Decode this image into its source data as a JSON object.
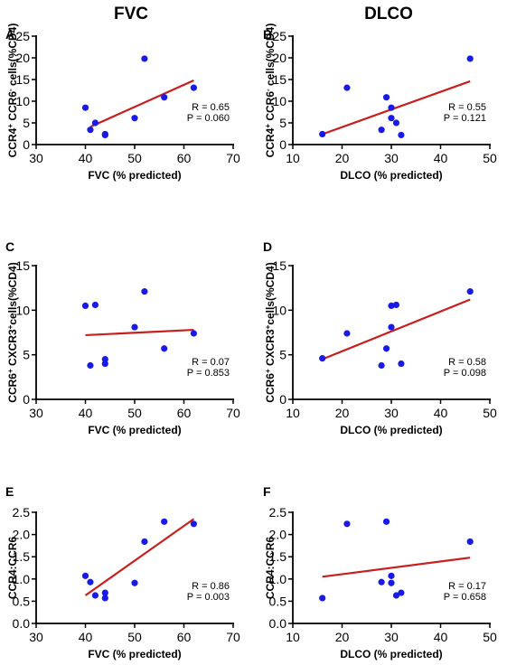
{
  "column_titles": [
    "FVC",
    "DLCO"
  ],
  "colors": {
    "point": "#1a1ae6",
    "fit_line": "#c81e1e",
    "axis": "#000000"
  },
  "chart_data": [
    {
      "panel": "A",
      "type": "scatter",
      "column": "FVC",
      "xlabel": "FVC (% predicted)",
      "ylabel": [
        "CCR4",
        "+",
        " CCR6",
        "-",
        " cells(%CD4)"
      ],
      "xlim": [
        30,
        70
      ],
      "ylim": [
        0,
        25
      ],
      "xticks": [
        30,
        40,
        50,
        60,
        70
      ],
      "yticks": [
        0,
        5,
        10,
        15,
        20,
        25
      ],
      "points": [
        [
          40,
          8.5
        ],
        [
          41,
          3.4
        ],
        [
          42,
          5.0
        ],
        [
          44,
          2.4
        ],
        [
          44,
          2.2
        ],
        [
          50,
          6.1
        ],
        [
          52,
          19.8
        ],
        [
          56,
          10.9
        ],
        [
          62,
          13.1
        ]
      ],
      "fit": [
        [
          41,
          4.1
        ],
        [
          62,
          14.8
        ]
      ],
      "stats": [
        "R = 0.65",
        "P = 0.060"
      ]
    },
    {
      "panel": "B",
      "type": "scatter",
      "column": "DLCO",
      "xlabel": "DLCO (% predicted)",
      "ylabel": [
        "CCR4",
        "+",
        " CCR6",
        "-",
        " cells(%CD4)"
      ],
      "xlim": [
        10,
        50
      ],
      "ylim": [
        0,
        25
      ],
      "xticks": [
        10,
        20,
        30,
        40,
        50
      ],
      "yticks": [
        0,
        5,
        10,
        15,
        20,
        25
      ],
      "points": [
        [
          16,
          2.4
        ],
        [
          21,
          13.1
        ],
        [
          28,
          3.4
        ],
        [
          29,
          10.9
        ],
        [
          30,
          8.5
        ],
        [
          30,
          6.1
        ],
        [
          31,
          5.0
        ],
        [
          32,
          2.2
        ],
        [
          46,
          19.8
        ]
      ],
      "fit": [
        [
          16,
          2.4
        ],
        [
          46,
          14.6
        ]
      ],
      "stats": [
        "R = 0.55",
        "P = 0.121"
      ]
    },
    {
      "panel": "C",
      "type": "scatter",
      "column": "FVC",
      "xlabel": "FVC (% predicted)",
      "ylabel": [
        "CCR6",
        "+",
        " CXCR3",
        "+",
        "cells(%CD4)"
      ],
      "xlim": [
        30,
        70
      ],
      "ylim": [
        0,
        15
      ],
      "xticks": [
        30,
        40,
        50,
        60,
        70
      ],
      "yticks": [
        0,
        5,
        10,
        15
      ],
      "points": [
        [
          40,
          10.5
        ],
        [
          41,
          3.8
        ],
        [
          42,
          10.6
        ],
        [
          44,
          4.5
        ],
        [
          44,
          4.0
        ],
        [
          50,
          8.1
        ],
        [
          52,
          12.1
        ],
        [
          56,
          5.7
        ],
        [
          62,
          7.4
        ]
      ],
      "fit": [
        [
          40,
          7.2
        ],
        [
          62,
          7.8
        ]
      ],
      "stats": [
        "R = 0.07",
        "P = 0.853"
      ]
    },
    {
      "panel": "D",
      "type": "scatter",
      "column": "DLCO",
      "xlabel": "DLCO (% predicted)",
      "ylabel": [
        "CCR6",
        "+",
        " CXCR3",
        "+",
        "cells(%CD4)"
      ],
      "xlim": [
        10,
        50
      ],
      "ylim": [
        0,
        15
      ],
      "xticks": [
        10,
        20,
        30,
        40,
        50
      ],
      "yticks": [
        0,
        5,
        10,
        15
      ],
      "points": [
        [
          16,
          4.6
        ],
        [
          21,
          7.4
        ],
        [
          28,
          3.8
        ],
        [
          29,
          5.7
        ],
        [
          30,
          10.5
        ],
        [
          30,
          8.1
        ],
        [
          31,
          10.6
        ],
        [
          32,
          4.0
        ],
        [
          46,
          12.1
        ]
      ],
      "fit": [
        [
          16,
          4.5
        ],
        [
          46,
          11.2
        ]
      ],
      "stats": [
        "R = 0.58",
        "P = 0.098"
      ]
    },
    {
      "panel": "E",
      "type": "scatter",
      "column": "FVC",
      "xlabel": "FVC (% predicted)",
      "ylabel": [
        "CCR4:CCR6"
      ],
      "xlim": [
        30,
        70
      ],
      "ylim": [
        0,
        2.5
      ],
      "xticks": [
        30,
        40,
        50,
        60,
        70
      ],
      "yticks": [
        0.0,
        0.5,
        1.0,
        1.5,
        2.0,
        2.5
      ],
      "ytick_labels": [
        "0.0",
        "0.5",
        "1.0",
        "1.5",
        "2.0",
        "2.5"
      ],
      "points": [
        [
          40,
          1.07
        ],
        [
          41,
          0.93
        ],
        [
          42,
          0.63
        ],
        [
          44,
          0.69
        ],
        [
          44,
          0.57
        ],
        [
          50,
          0.91
        ],
        [
          52,
          1.84
        ],
        [
          56,
          2.29
        ],
        [
          62,
          2.24
        ]
      ],
      "fit": [
        [
          40,
          0.63
        ],
        [
          62,
          2.35
        ]
      ],
      "stats": [
        "R = 0.86",
        "P = 0.003"
      ]
    },
    {
      "panel": "F",
      "type": "scatter",
      "column": "DLCO",
      "xlabel": "DLCO (% predicted)",
      "ylabel": [
        "CCR4:CCR6"
      ],
      "xlim": [
        10,
        50
      ],
      "ylim": [
        0,
        2.5
      ],
      "xticks": [
        10,
        20,
        30,
        40,
        50
      ],
      "yticks": [
        0.0,
        0.5,
        1.0,
        1.5,
        2.0,
        2.5
      ],
      "ytick_labels": [
        "0.0",
        "0.5",
        "1.0",
        "1.5",
        "2.0",
        "2.5"
      ],
      "points": [
        [
          16,
          0.57
        ],
        [
          21,
          2.24
        ],
        [
          28,
          0.93
        ],
        [
          29,
          2.29
        ],
        [
          30,
          1.07
        ],
        [
          30,
          0.91
        ],
        [
          31,
          0.63
        ],
        [
          32,
          0.69
        ],
        [
          46,
          1.84
        ]
      ],
      "fit": [
        [
          16,
          1.05
        ],
        [
          46,
          1.48
        ]
      ],
      "stats": [
        "R = 0.17",
        "P = 0.658"
      ]
    }
  ]
}
